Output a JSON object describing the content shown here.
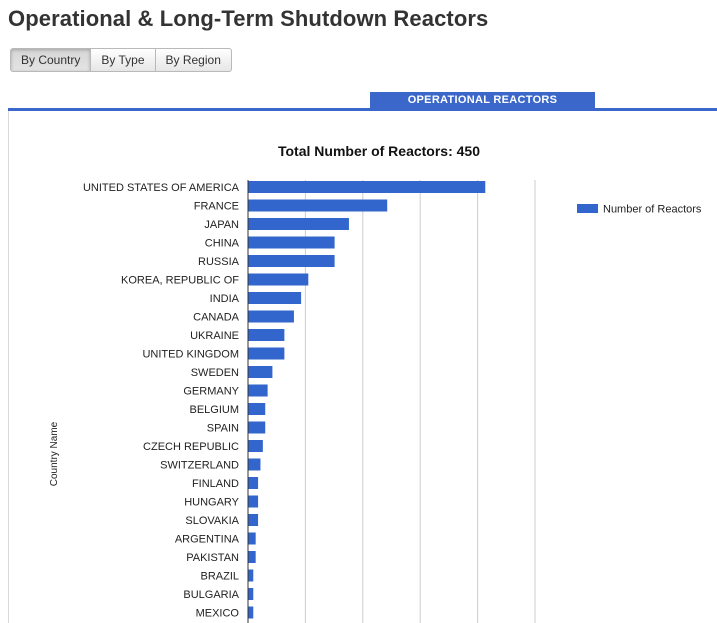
{
  "page": {
    "title": "Operational & Long-Term Shutdown Reactors"
  },
  "toggles": [
    {
      "label": "By Country",
      "active": true
    },
    {
      "label": "By Type",
      "active": false
    },
    {
      "label": "By Region",
      "active": false
    }
  ],
  "tab": {
    "label": "OPERATIONAL REACTORS"
  },
  "colors": {
    "accent": "#3a67c9",
    "bar": "#3366cc"
  },
  "chart_data": {
    "type": "bar",
    "orientation": "horizontal",
    "title": "Total Number of Reactors: 450",
    "ylabel": "Country Name",
    "xlabel": "",
    "categories": [
      "UNITED STATES OF AMERICA",
      "FRANCE",
      "JAPAN",
      "CHINA",
      "RUSSIA",
      "KOREA, REPUBLIC OF",
      "INDIA",
      "CANADA",
      "UKRAINE",
      "UNITED KINGDOM",
      "SWEDEN",
      "GERMANY",
      "BELGIUM",
      "SPAIN",
      "CZECH REPUBLIC",
      "SWITZERLAND",
      "FINLAND",
      "HUNGARY",
      "SLOVAKIA",
      "ARGENTINA",
      "PAKISTAN",
      "BRAZIL",
      "BULGARIA",
      "MEXICO"
    ],
    "series": [
      {
        "name": "Number of Reactors",
        "values": [
          99,
          58,
          42,
          36,
          36,
          25,
          22,
          19,
          15,
          15,
          10,
          8,
          7,
          7,
          6,
          5,
          4,
          4,
          4,
          3,
          3,
          2,
          2,
          2
        ]
      }
    ],
    "xlim": [
      0,
      120
    ],
    "grid": true,
    "legend": "right"
  }
}
